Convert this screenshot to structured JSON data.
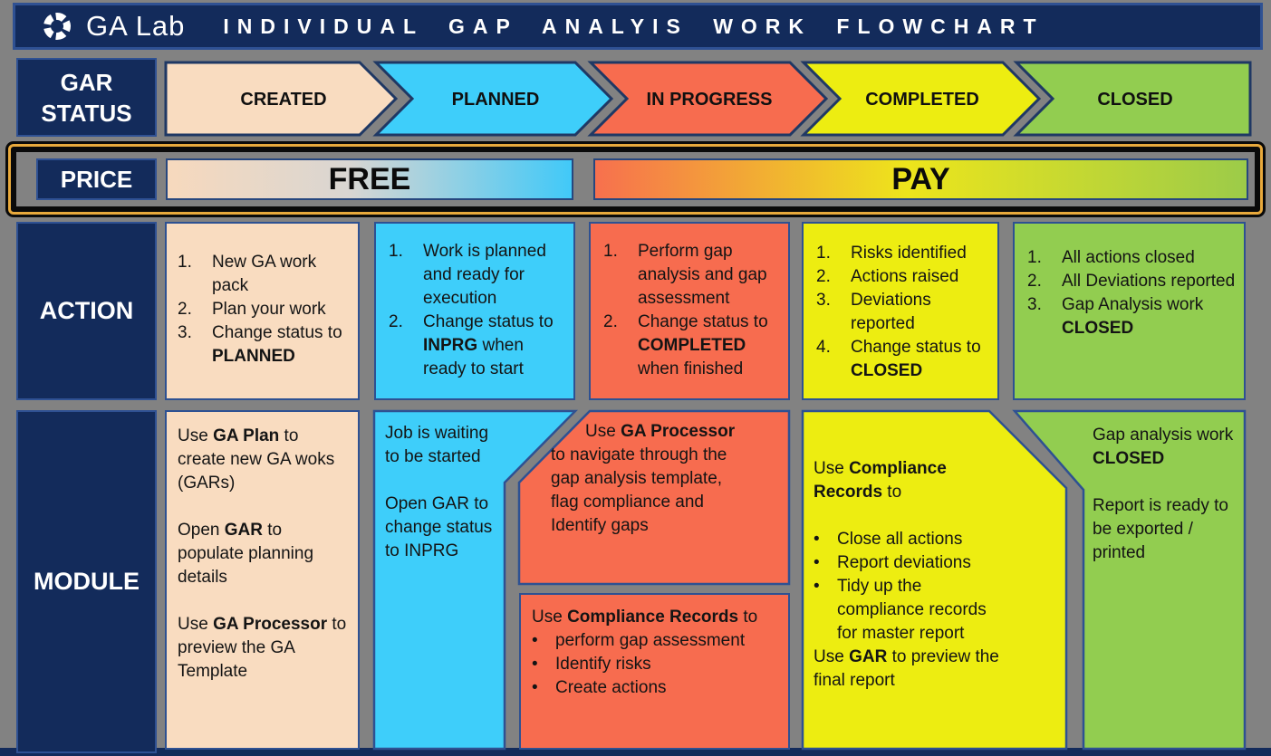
{
  "header": {
    "brand": "GA Lab",
    "title": "INDIVIDUAL GAP ANALYIS WORK FLOWCHART"
  },
  "row_labels": {
    "status_line1": "GAR",
    "status_line2": "STATUS",
    "price": "PRICE",
    "action": "ACTION",
    "module": "MODULE"
  },
  "status_flow": {
    "stages": [
      {
        "label": "CREATED",
        "color": "#F9DCC0"
      },
      {
        "label": "PLANNED",
        "color": "#3ECEFA"
      },
      {
        "label": "IN PROGRESS",
        "color": "#F76C4F"
      },
      {
        "label": "COMPLETED",
        "color": "#EDED11"
      },
      {
        "label": "CLOSED",
        "color": "#92CD50"
      }
    ]
  },
  "price_row": {
    "free_label": "FREE",
    "pay_label": "PAY"
  },
  "action_row": {
    "boxes": [
      {
        "stage": "CREATED",
        "items": [
          {
            "n": "1.",
            "text": "New GA work pack"
          },
          {
            "n": "2.",
            "text": "Plan your work"
          },
          {
            "n": "3.",
            "text": "Change status to **PLANNED**"
          }
        ]
      },
      {
        "stage": "PLANNED",
        "items": [
          {
            "n": "1.",
            "text": "Work is planned and ready for execution"
          },
          {
            "n": "2.",
            "text": "Change status to **INPRG** when ready to start"
          }
        ]
      },
      {
        "stage": "IN PROGRESS",
        "items": [
          {
            "n": "1.",
            "text": "Perform gap analysis and gap assessment"
          },
          {
            "n": "2.",
            "text": "Change status to **COMPLETED** when finished"
          }
        ]
      },
      {
        "stage": "COMPLETED",
        "items": [
          {
            "n": "1.",
            "text": "Risks identified"
          },
          {
            "n": "2.",
            "text": "Actions raised"
          },
          {
            "n": "3.",
            "text": "Deviations reported"
          },
          {
            "n": "4.",
            "text": "Change status to **CLOSED**"
          }
        ]
      },
      {
        "stage": "CLOSED",
        "items": [
          {
            "n": "1.",
            "text": "All actions closed"
          },
          {
            "n": "2.",
            "text": "All Deviations reported"
          },
          {
            "n": "3.",
            "text": "Gap Analysis work **CLOSED**"
          }
        ]
      }
    ]
  },
  "module_row": {
    "created": {
      "paragraphs": [
        "Use **GA Plan** to create new GA woks (GARs)",
        "Open **GAR** to populate planning details",
        "Use **GA Processor** to preview the GA Template"
      ]
    },
    "planned": {
      "paragraphs": [
        "Job is waiting to be started",
        "Open GAR to change status to INPRG"
      ]
    },
    "in_progress_top": {
      "text": "Use **GA Processor** to navigate through the gap analysis template, flag compliance and Identify gaps"
    },
    "in_progress_bottom": {
      "intro": "Use **Compliance Records** to",
      "bullets": [
        "perform gap assessment",
        "Identify risks",
        "Create actions"
      ]
    },
    "completed": {
      "intro": "Use **Compliance Records** to",
      "bullets": [
        "Close all actions",
        "Report deviations",
        "Tidy up the compliance records for master report"
      ],
      "outro": "Use **GAR** to preview the final report"
    },
    "closed": {
      "paragraphs": [
        "Gap analysis work **CLOSED**",
        "Report is ready to be exported / printed"
      ]
    }
  },
  "colors": {
    "background": "#828282",
    "navy": "#132B5B",
    "navy_border": "#2F5193",
    "arrow_border": "#1F3864",
    "created": "#F9DCC0",
    "planned": "#3ECEFA",
    "in_progress": "#F76C4F",
    "completed": "#EDED11",
    "closed": "#92CD50",
    "gold": "#E8A93C"
  }
}
